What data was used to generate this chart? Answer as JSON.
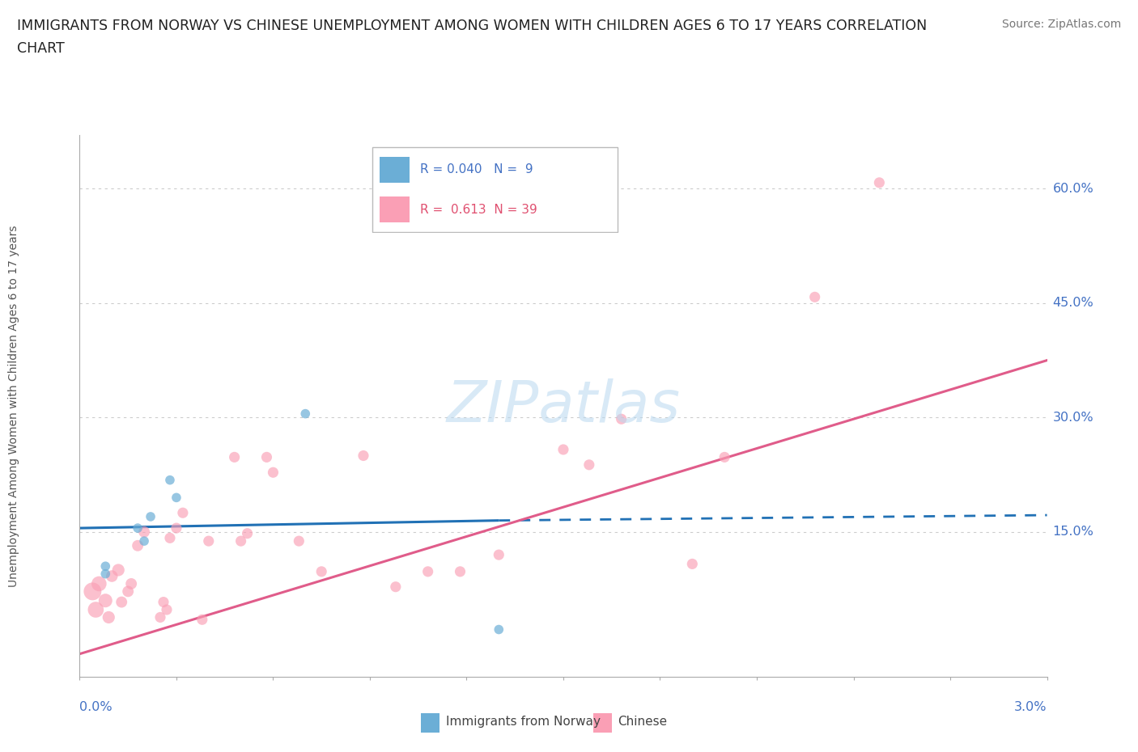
{
  "title_line1": "IMMIGRANTS FROM NORWAY VS CHINESE UNEMPLOYMENT AMONG WOMEN WITH CHILDREN AGES 6 TO 17 YEARS CORRELATION",
  "title_line2": "CHART",
  "source": "Source: ZipAtlas.com",
  "ylabel": "Unemployment Among Women with Children Ages 6 to 17 years",
  "ytick_vals": [
    0.0,
    0.15,
    0.3,
    0.45,
    0.6
  ],
  "ytick_labels": [
    "",
    "15.0%",
    "30.0%",
    "45.0%",
    "60.0%"
  ],
  "xmin": 0.0,
  "xmax": 0.03,
  "ymin": -0.04,
  "ymax": 0.67,
  "watermark_text": "ZIPatlas",
  "legend_norway_R": "0.040",
  "legend_norway_N": "9",
  "legend_chinese_R": "0.613",
  "legend_chinese_N": "39",
  "norway_color": "#6baed6",
  "chinese_color": "#fa9fb5",
  "norway_line_color": "#2171b5",
  "chinese_line_color": "#e05c8a",
  "norway_line_solid": [
    [
      0.0,
      0.155
    ],
    [
      0.013,
      0.165
    ]
  ],
  "norway_line_dash": [
    [
      0.013,
      0.165
    ],
    [
      0.03,
      0.172
    ]
  ],
  "chinese_line": [
    [
      0.0,
      -0.01
    ],
    [
      0.03,
      0.375
    ]
  ],
  "norway_scatter": [
    [
      0.0008,
      0.105
    ],
    [
      0.0008,
      0.095
    ],
    [
      0.0018,
      0.155
    ],
    [
      0.002,
      0.138
    ],
    [
      0.0022,
      0.17
    ],
    [
      0.0028,
      0.218
    ],
    [
      0.003,
      0.195
    ],
    [
      0.007,
      0.305
    ],
    [
      0.013,
      0.022
    ]
  ],
  "norway_sizes": [
    70,
    70,
    70,
    70,
    70,
    70,
    70,
    70,
    70
  ],
  "chinese_scatter": [
    [
      0.0004,
      0.072
    ],
    [
      0.0005,
      0.048
    ],
    [
      0.0006,
      0.082
    ],
    [
      0.0008,
      0.06
    ],
    [
      0.0009,
      0.038
    ],
    [
      0.001,
      0.092
    ],
    [
      0.0012,
      0.1
    ],
    [
      0.0013,
      0.058
    ],
    [
      0.0015,
      0.072
    ],
    [
      0.0016,
      0.082
    ],
    [
      0.0018,
      0.132
    ],
    [
      0.002,
      0.15
    ],
    [
      0.0025,
      0.038
    ],
    [
      0.0026,
      0.058
    ],
    [
      0.0027,
      0.048
    ],
    [
      0.0028,
      0.142
    ],
    [
      0.003,
      0.155
    ],
    [
      0.0032,
      0.175
    ],
    [
      0.0038,
      0.035
    ],
    [
      0.004,
      0.138
    ],
    [
      0.0048,
      0.248
    ],
    [
      0.005,
      0.138
    ],
    [
      0.0052,
      0.148
    ],
    [
      0.0058,
      0.248
    ],
    [
      0.006,
      0.228
    ],
    [
      0.0068,
      0.138
    ],
    [
      0.0075,
      0.098
    ],
    [
      0.0088,
      0.25
    ],
    [
      0.0098,
      0.078
    ],
    [
      0.0108,
      0.098
    ],
    [
      0.0118,
      0.098
    ],
    [
      0.013,
      0.12
    ],
    [
      0.015,
      0.258
    ],
    [
      0.0158,
      0.238
    ],
    [
      0.0168,
      0.298
    ],
    [
      0.019,
      0.108
    ],
    [
      0.02,
      0.248
    ],
    [
      0.0228,
      0.458
    ],
    [
      0.0248,
      0.608
    ]
  ],
  "chinese_sizes": [
    250,
    200,
    180,
    150,
    120,
    110,
    120,
    100,
    100,
    100,
    100,
    100,
    90,
    90,
    90,
    90,
    90,
    90,
    90,
    90,
    90,
    90,
    90,
    90,
    90,
    90,
    90,
    90,
    90,
    90,
    90,
    90,
    90,
    90,
    90,
    90,
    90,
    90,
    90
  ]
}
